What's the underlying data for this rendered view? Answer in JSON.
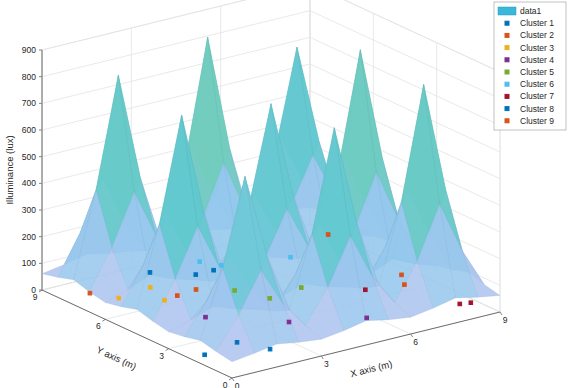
{
  "chart_data": {
    "type": "surface",
    "xlabel": "X axis (m)",
    "ylabel": "Y axis (m)",
    "zlabel": "Illuminance (lux)",
    "xlim": [
      0,
      9
    ],
    "ylim": [
      0,
      9
    ],
    "zlim": [
      0,
      900
    ],
    "xticks": [
      0,
      3,
      6,
      9
    ],
    "yticks": [
      0,
      3,
      6,
      9
    ],
    "zticks": [
      0,
      100,
      200,
      300,
      400,
      500,
      600,
      700,
      800,
      900
    ],
    "grid": true,
    "legend": "northeast",
    "series": [
      {
        "name": "data1",
        "type": "surface",
        "x": [
          0,
          0.75,
          1.5,
          2.25,
          3,
          3.75,
          4.5,
          5.25,
          6,
          6.75,
          7.5,
          8.25,
          9
        ],
        "y": [
          0,
          0.75,
          1.5,
          2.25,
          3,
          3.75,
          4.5,
          5.25,
          6,
          6.75,
          7.5,
          8.25,
          9
        ],
        "values": [
          [
            61,
            72,
            86,
            72,
            63,
            74,
            91,
            74,
            63,
            76,
            94,
            76,
            62
          ],
          [
            72,
            187,
            336,
            187,
            86,
            208,
            382,
            208,
            90,
            225,
            419,
            225,
            76
          ],
          [
            86,
            336,
            660,
            336,
            117,
            382,
            760,
            382,
            125,
            419,
            840,
            419,
            94
          ],
          [
            72,
            187,
            336,
            187,
            86,
            208,
            382,
            208,
            90,
            225,
            419,
            225,
            76
          ],
          [
            63,
            87,
            118,
            87,
            65,
            88,
            121,
            88,
            66,
            92,
            130,
            92,
            63
          ],
          [
            75,
            212,
            391,
            212,
            88,
            204,
            373,
            204,
            90,
            229,
            428,
            229,
            76
          ],
          [
            92,
            391,
            780,
            391,
            122,
            373,
            740,
            373,
            125,
            428,
            860,
            428,
            95
          ],
          [
            75,
            212,
            391,
            212,
            88,
            204,
            373,
            204,
            90,
            229,
            428,
            229,
            76
          ],
          [
            63,
            90,
            125,
            90,
            66,
            90,
            126,
            90,
            66,
            90,
            126,
            90,
            63
          ],
          [
            75,
            221,
            410,
            221,
            92,
            234,
            437,
            234,
            91,
            208,
            382,
            208,
            74
          ],
          [
            93,
            410,
            820,
            410,
            130,
            437,
            880,
            437,
            127,
            382,
            760,
            382,
            91
          ],
          [
            75,
            221,
            410,
            221,
            92,
            234,
            437,
            234,
            91,
            208,
            382,
            208,
            74
          ],
          [
            61,
            75,
            93,
            75,
            63,
            77,
            96,
            77,
            63,
            74,
            91,
            74,
            61
          ]
        ]
      },
      {
        "name": "Cluster 1",
        "type": "scatter",
        "color": "#0072bd",
        "marker": "square",
        "x": [
          0.5,
          1.8,
          2.2
        ],
        "y": [
          2.0,
          2.3,
          1.3
        ],
        "values": [
          0,
          0,
          0
        ]
      },
      {
        "name": "Cluster 2",
        "type": "scatter",
        "color": "#d95319",
        "marker": "square",
        "x": [
          0.9,
          2.7,
          3.4
        ],
        "y": [
          8.0,
          6.4,
          6.5
        ],
        "values": [
          0,
          0,
          0
        ]
      },
      {
        "name": "Cluster 3",
        "type": "scatter",
        "color": "#edb120",
        "marker": "square",
        "x": [
          1.3,
          2.5,
          2.2
        ],
        "y": [
          7.2,
          7.4,
          6.3
        ],
        "values": [
          0,
          0,
          0
        ]
      },
      {
        "name": "Cluster 4",
        "type": "scatter",
        "color": "#7e2f8e",
        "marker": "square",
        "x": [
          2.3,
          3.9,
          5.8
        ],
        "y": [
          4.5,
          2.8,
          1.8
        ],
        "values": [
          0,
          0,
          0
        ]
      },
      {
        "name": "Cluster 5",
        "type": "scatter",
        "color": "#77ac30",
        "marker": "square",
        "x": [
          4.2,
          4.6,
          5.8
        ],
        "y": [
          5.8,
          4.7,
          4.9
        ],
        "values": [
          0,
          0,
          0
        ]
      },
      {
        "name": "Cluster 6",
        "type": "scatter",
        "color": "#4dbeee",
        "marker": "square",
        "x": [
          4.8,
          5.1,
          7.0
        ],
        "y": [
          8.3,
          7.7,
          7.1
        ],
        "values": [
          0,
          0,
          0
        ]
      },
      {
        "name": "Cluster 7",
        "type": "scatter",
        "color": "#a2142f",
        "marker": "square",
        "x": [
          7.1,
          8.5,
          8.8
        ],
        "y": [
          3.7,
          1.2,
          1.1
        ],
        "values": [
          0,
          0,
          0
        ]
      },
      {
        "name": "Cluster 8",
        "type": "scatter",
        "color": "#0072bd",
        "marker": "square",
        "x": [
          4.1,
          3.2,
          4.7
        ],
        "y": [
          7.5,
          8.4,
          7.5
        ],
        "values": [
          0,
          0,
          0
        ]
      },
      {
        "name": "Cluster 9",
        "type": "scatter",
        "color": "#d95319",
        "marker": "square",
        "x": [
          8.9,
          8.6,
          8.2
        ],
        "y": [
          8.0,
          4.1,
          3.4
        ],
        "values": [
          0,
          0,
          0
        ]
      }
    ]
  }
}
